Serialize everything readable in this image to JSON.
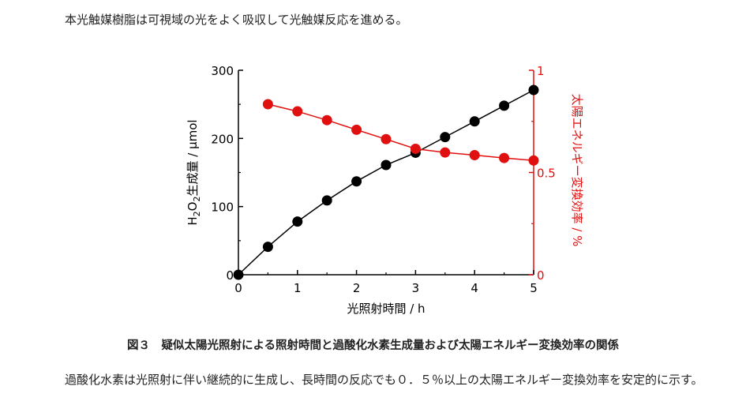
{
  "intro_text": "本光触媒樹脂は可視域の光をよく吸収して光触媒反応を進める。",
  "caption": "図３　疑似太陽光照射による照射時間と過酸化水素生成量および太陽エネルギー変換効率の関係",
  "body_text": "過酸化水素は光照射に伴い継続的に生成し、長時間の反応でも０．５％以上の太陽エネルギー変換効率を安定的に示す。",
  "chart_data": {
    "type": "scatter",
    "xlabel": "光照射時間 / h",
    "ylabel_left": "生成量 / μmol",
    "ylabel_left_chemical": "H2O2",
    "ylabel_right": "太陽エネルギー変換効率 / %",
    "xlim": [
      0,
      5
    ],
    "ylim_left": [
      0,
      300
    ],
    "ylim_right": [
      0,
      1
    ],
    "x_ticks": [
      "0",
      "1",
      "2",
      "3",
      "4",
      "5"
    ],
    "y_left_ticks": [
      "0",
      "100",
      "200",
      "300"
    ],
    "y_right_ticks": [
      "0",
      "0.5",
      "1"
    ],
    "series": [
      {
        "axis": "left",
        "color": "#000000",
        "line": true,
        "points": [
          [
            0,
            0
          ],
          [
            0.5,
            41
          ],
          [
            1,
            78
          ],
          [
            1.5,
            109
          ],
          [
            2,
            137
          ],
          [
            2.5,
            161
          ],
          [
            3,
            179
          ],
          [
            3.5,
            202
          ],
          [
            4,
            225
          ],
          [
            4.5,
            248
          ],
          [
            5,
            271
          ]
        ]
      },
      {
        "axis": "right",
        "color": "#e01010",
        "line": true,
        "points": [
          [
            0.5,
            0.834
          ],
          [
            1,
            0.799
          ],
          [
            1.5,
            0.756
          ],
          [
            2,
            0.709
          ],
          [
            2.5,
            0.663
          ],
          [
            3,
            0.616
          ],
          [
            3.5,
            0.598
          ],
          [
            4,
            0.585
          ],
          [
            4.5,
            0.571
          ],
          [
            5,
            0.559
          ]
        ]
      }
    ]
  }
}
